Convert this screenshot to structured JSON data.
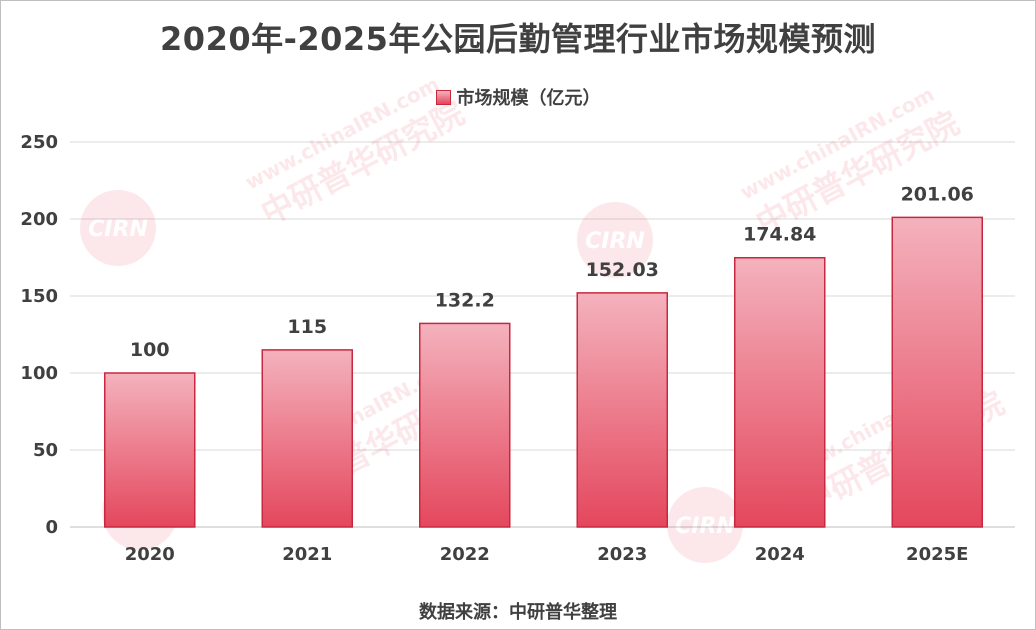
{
  "chart_data": {
    "type": "bar",
    "title": "2020年-2025年公园后勤管理行业市场规模预测",
    "categories": [
      "2020",
      "2021",
      "2022",
      "2023",
      "2024",
      "2025E"
    ],
    "series": [
      {
        "name": "市场规模（亿元）",
        "values": [
          100,
          115,
          132.2,
          152.03,
          174.84,
          201.06
        ],
        "labels": [
          "100",
          "115",
          "132.2",
          "152.03",
          "174.84",
          "201.06"
        ]
      }
    ],
    "yticks": [
      "0",
      "50",
      "100",
      "150",
      "200",
      "250"
    ],
    "ylim": [
      0,
      250
    ],
    "grid": true,
    "legend_position": "top",
    "colors": {
      "bar_top": "#f4b2bd",
      "bar_bottom": "#e4475d",
      "bar_border": "#c8283f",
      "grid": "#d9d9d9",
      "text": "#404040"
    }
  },
  "source": "数据来源：中研普华整理",
  "watermark": {
    "logo_text": "CIRN",
    "url_text": "www.chinaIRN.com",
    "org_text": "中研普华研究院"
  }
}
